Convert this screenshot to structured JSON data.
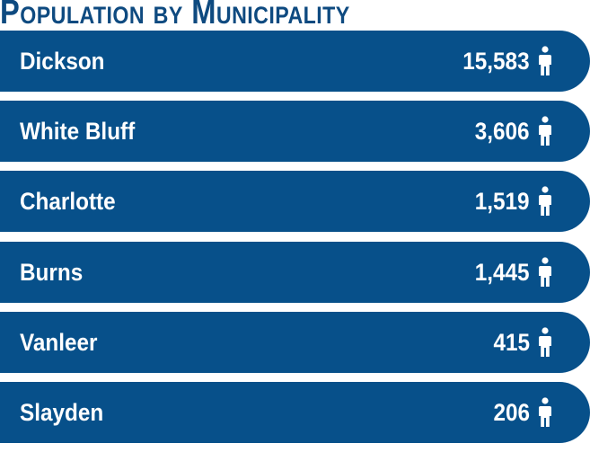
{
  "title": "Population by Municipality",
  "colors": {
    "title": "#0e4a80",
    "bar": "#07508a",
    "text": "#ffffff"
  },
  "icon": "person-icon",
  "chart_data": {
    "type": "table",
    "title": "Population by Municipality",
    "categories": [
      "Dickson",
      "White Bluff",
      "Charlotte",
      "Burns",
      "Vanleer",
      "Slayden"
    ],
    "values": [
      15583,
      3606,
      1519,
      1445,
      415,
      206
    ],
    "value_labels": [
      "15,583",
      "3,606",
      "1,519",
      "1,445",
      "415",
      "206"
    ]
  }
}
